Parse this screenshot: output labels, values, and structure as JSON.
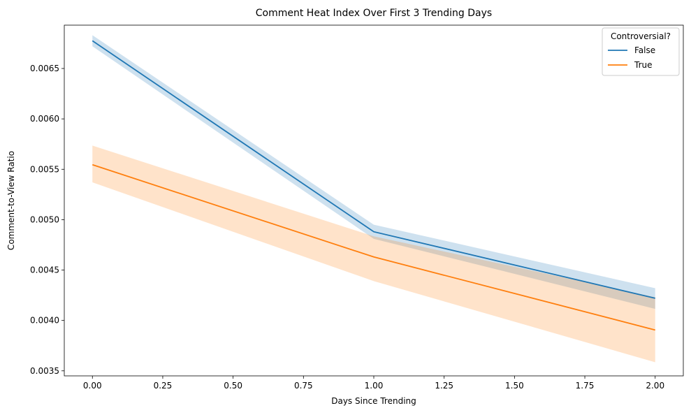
{
  "chart_data": {
    "type": "line",
    "title": "Comment Heat Index Over First 3 Trending Days",
    "xlabel": "Days Since Trending",
    "ylabel": "Comment-to-View Ratio",
    "xlim": [
      -0.1,
      2.1
    ],
    "ylim": [
      0.00345,
      0.00693
    ],
    "x_ticks": [
      0.0,
      0.25,
      0.5,
      0.75,
      1.0,
      1.25,
      1.5,
      1.75,
      2.0
    ],
    "x_tick_labels": [
      "0.00",
      "0.25",
      "0.50",
      "0.75",
      "1.00",
      "1.25",
      "1.50",
      "1.75",
      "2.00"
    ],
    "y_ticks": [
      0.0035,
      0.004,
      0.0045,
      0.005,
      0.0055,
      0.006,
      0.0065
    ],
    "y_tick_labels": [
      "0.0035",
      "0.0040",
      "0.0045",
      "0.0050",
      "0.0055",
      "0.0060",
      "0.0065"
    ],
    "grid": false,
    "legend": {
      "title": "Controversial?",
      "placement": "top-right"
    },
    "x": [
      0,
      1,
      2
    ],
    "series": [
      {
        "name": "False",
        "color": "#1f77b4",
        "values": [
          0.006775,
          0.00488,
          0.00422
        ],
        "ci_lower": [
          0.00672,
          0.00481,
          0.004115
        ],
        "ci_upper": [
          0.00683,
          0.00495,
          0.00432
        ]
      },
      {
        "name": "True",
        "color": "#ff7f0e",
        "values": [
          0.005545,
          0.00463,
          0.003905
        ],
        "ci_lower": [
          0.00537,
          0.00439,
          0.003585
        ],
        "ci_upper": [
          0.005735,
          0.004835,
          0.00423
        ]
      }
    ]
  }
}
